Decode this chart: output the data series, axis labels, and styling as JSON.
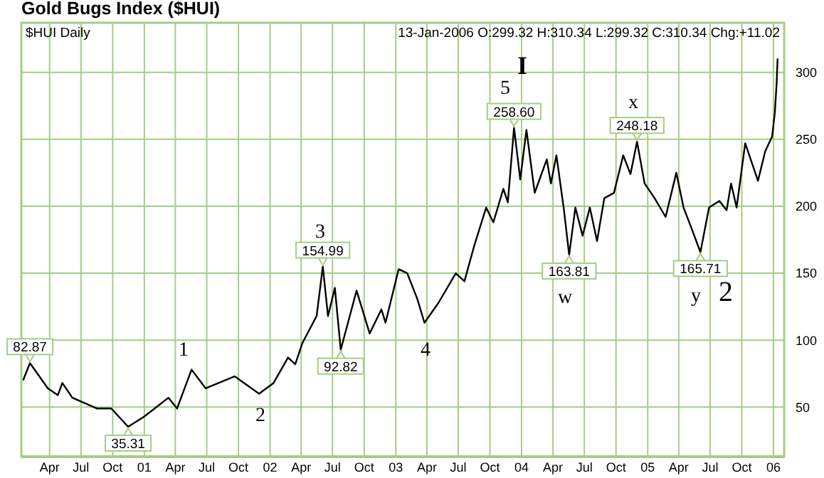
{
  "chart_data": {
    "type": "line",
    "title": "Gold Bugs Index ($HUI)",
    "annotations": [
      "$HUI Daily",
      "13-Jan-2006 O:299.32 H:310.34 L:299.32 C:310.34 Chg:+11.02",
      {
        "text": "82.87",
        "x": "2000-02-04",
        "y": 82.87
      },
      {
        "text": "35.31",
        "x": "2000-11-15",
        "y": 35.31
      },
      {
        "text": "154.99",
        "x": "2002-06-03",
        "y": 154.99
      },
      {
        "text": "92.82",
        "x": "2002-07-25",
        "y": 92.82
      },
      {
        "text": "258.60",
        "x": "2003-12-10",
        "y": 258.6
      },
      {
        "text": "163.81",
        "x": "2004-05-18",
        "y": 163.81
      },
      {
        "text": "248.18",
        "x": "2004-12-01",
        "y": 248.18
      },
      {
        "text": "165.71",
        "x": "2005-06-03",
        "y": 165.71
      },
      "1",
      "2",
      "3",
      "4",
      "5",
      "I",
      "w",
      "x",
      "y",
      "2"
    ],
    "x": [
      "2000-01-15",
      "2000-02-04",
      "2000-03-27",
      "2000-04-25",
      "2000-05-08",
      "2000-06-06",
      "2000-08-16",
      "2000-09-27",
      "2000-11-15",
      "2001-01-01",
      "2001-03-12",
      "2001-04-06",
      "2001-05-18",
      "2001-06-28",
      "2001-09-20",
      "2001-11-30",
      "2002-01-11",
      "2002-02-22",
      "2002-03-15",
      "2002-04-05",
      "2002-05-16",
      "2002-06-03",
      "2002-06-18",
      "2002-07-08",
      "2002-07-25",
      "2002-09-09",
      "2002-10-17",
      "2002-11-20",
      "2002-12-02",
      "2003-01-09",
      "2003-02-03",
      "2003-03-04",
      "2003-03-25",
      "2003-05-05",
      "2003-06-24",
      "2003-07-19",
      "2003-08-17",
      "2003-09-20",
      "2003-10-11",
      "2003-11-09",
      "2003-11-22",
      "2003-12-10",
      "2003-12-28",
      "2004-01-15",
      "2004-02-08",
      "2004-03-14",
      "2004-03-26",
      "2004-04-11",
      "2004-05-02",
      "2004-05-18",
      "2004-06-05",
      "2004-06-26",
      "2004-07-17",
      "2004-08-07",
      "2004-08-28",
      "2004-09-25",
      "2004-10-22",
      "2004-11-12",
      "2004-12-01",
      "2004-12-23",
      "2005-01-21",
      "2005-02-22",
      "2005-03-25",
      "2005-04-15",
      "2005-05-06",
      "2005-06-03",
      "2005-06-28",
      "2005-07-28",
      "2005-08-18",
      "2005-08-31",
      "2005-09-16",
      "2005-10-11",
      "2005-11-17",
      "2005-12-08",
      "2005-12-28",
      "2006-01-05",
      "2006-01-10",
      "2006-01-13"
    ],
    "series": [
      {
        "color": "#000000",
        "values": [
          70,
          82.87,
          64,
          59,
          68,
          57,
          49,
          49,
          35.31,
          43,
          57,
          49,
          78,
          64,
          73,
          60,
          68,
          87,
          82,
          98,
          118,
          154.99,
          118,
          139,
          92.82,
          137,
          105,
          123,
          113,
          153,
          150,
          131,
          113,
          128,
          150,
          144,
          171,
          199,
          188,
          213,
          203,
          258.6,
          220,
          257,
          210,
          235,
          217,
          238,
          199,
          163.81,
          199,
          178,
          199,
          174,
          206,
          210,
          238,
          224,
          248.18,
          217,
          206,
          192,
          225,
          199,
          185,
          165.71,
          199,
          204,
          197,
          217,
          199,
          247,
          219,
          241,
          252,
          270,
          291,
          310.34
        ]
      }
    ],
    "xlim": [
      "2000-01-10",
      "2006-02-01"
    ],
    "xticks": [
      {
        "value": "2000-04-01",
        "label": "Apr"
      },
      {
        "value": "2000-07-01",
        "label": "Jul"
      },
      {
        "value": "2000-10-01",
        "label": "Oct"
      },
      {
        "value": "2001-01-01",
        "label": "01"
      },
      {
        "value": "2001-04-01",
        "label": "Apr"
      },
      {
        "value": "2001-07-01",
        "label": "Jul"
      },
      {
        "value": "2001-10-01",
        "label": "Oct"
      },
      {
        "value": "2002-01-01",
        "label": "02"
      },
      {
        "value": "2002-04-01",
        "label": "Apr"
      },
      {
        "value": "2002-07-01",
        "label": "Jul"
      },
      {
        "value": "2002-10-01",
        "label": "Oct"
      },
      {
        "value": "2003-01-01",
        "label": "03"
      },
      {
        "value": "2003-04-01",
        "label": "Apr"
      },
      {
        "value": "2003-07-01",
        "label": "Jul"
      },
      {
        "value": "2003-10-01",
        "label": "Oct"
      },
      {
        "value": "2004-01-01",
        "label": "04"
      },
      {
        "value": "2004-04-01",
        "label": "Apr"
      },
      {
        "value": "2004-07-01",
        "label": "Jul"
      },
      {
        "value": "2004-10-01",
        "label": "Oct"
      },
      {
        "value": "2005-01-01",
        "label": "05"
      },
      {
        "value": "2005-04-01",
        "label": "Apr"
      },
      {
        "value": "2005-07-01",
        "label": "Jul"
      },
      {
        "value": "2005-10-01",
        "label": "Oct"
      },
      {
        "value": "2006-01-01",
        "label": "06"
      }
    ],
    "ylim": [
      13,
      337
    ],
    "yticks": [
      50,
      100,
      150,
      200,
      250,
      300
    ],
    "grid": true,
    "marker": "none",
    "line_style": "solid"
  }
}
